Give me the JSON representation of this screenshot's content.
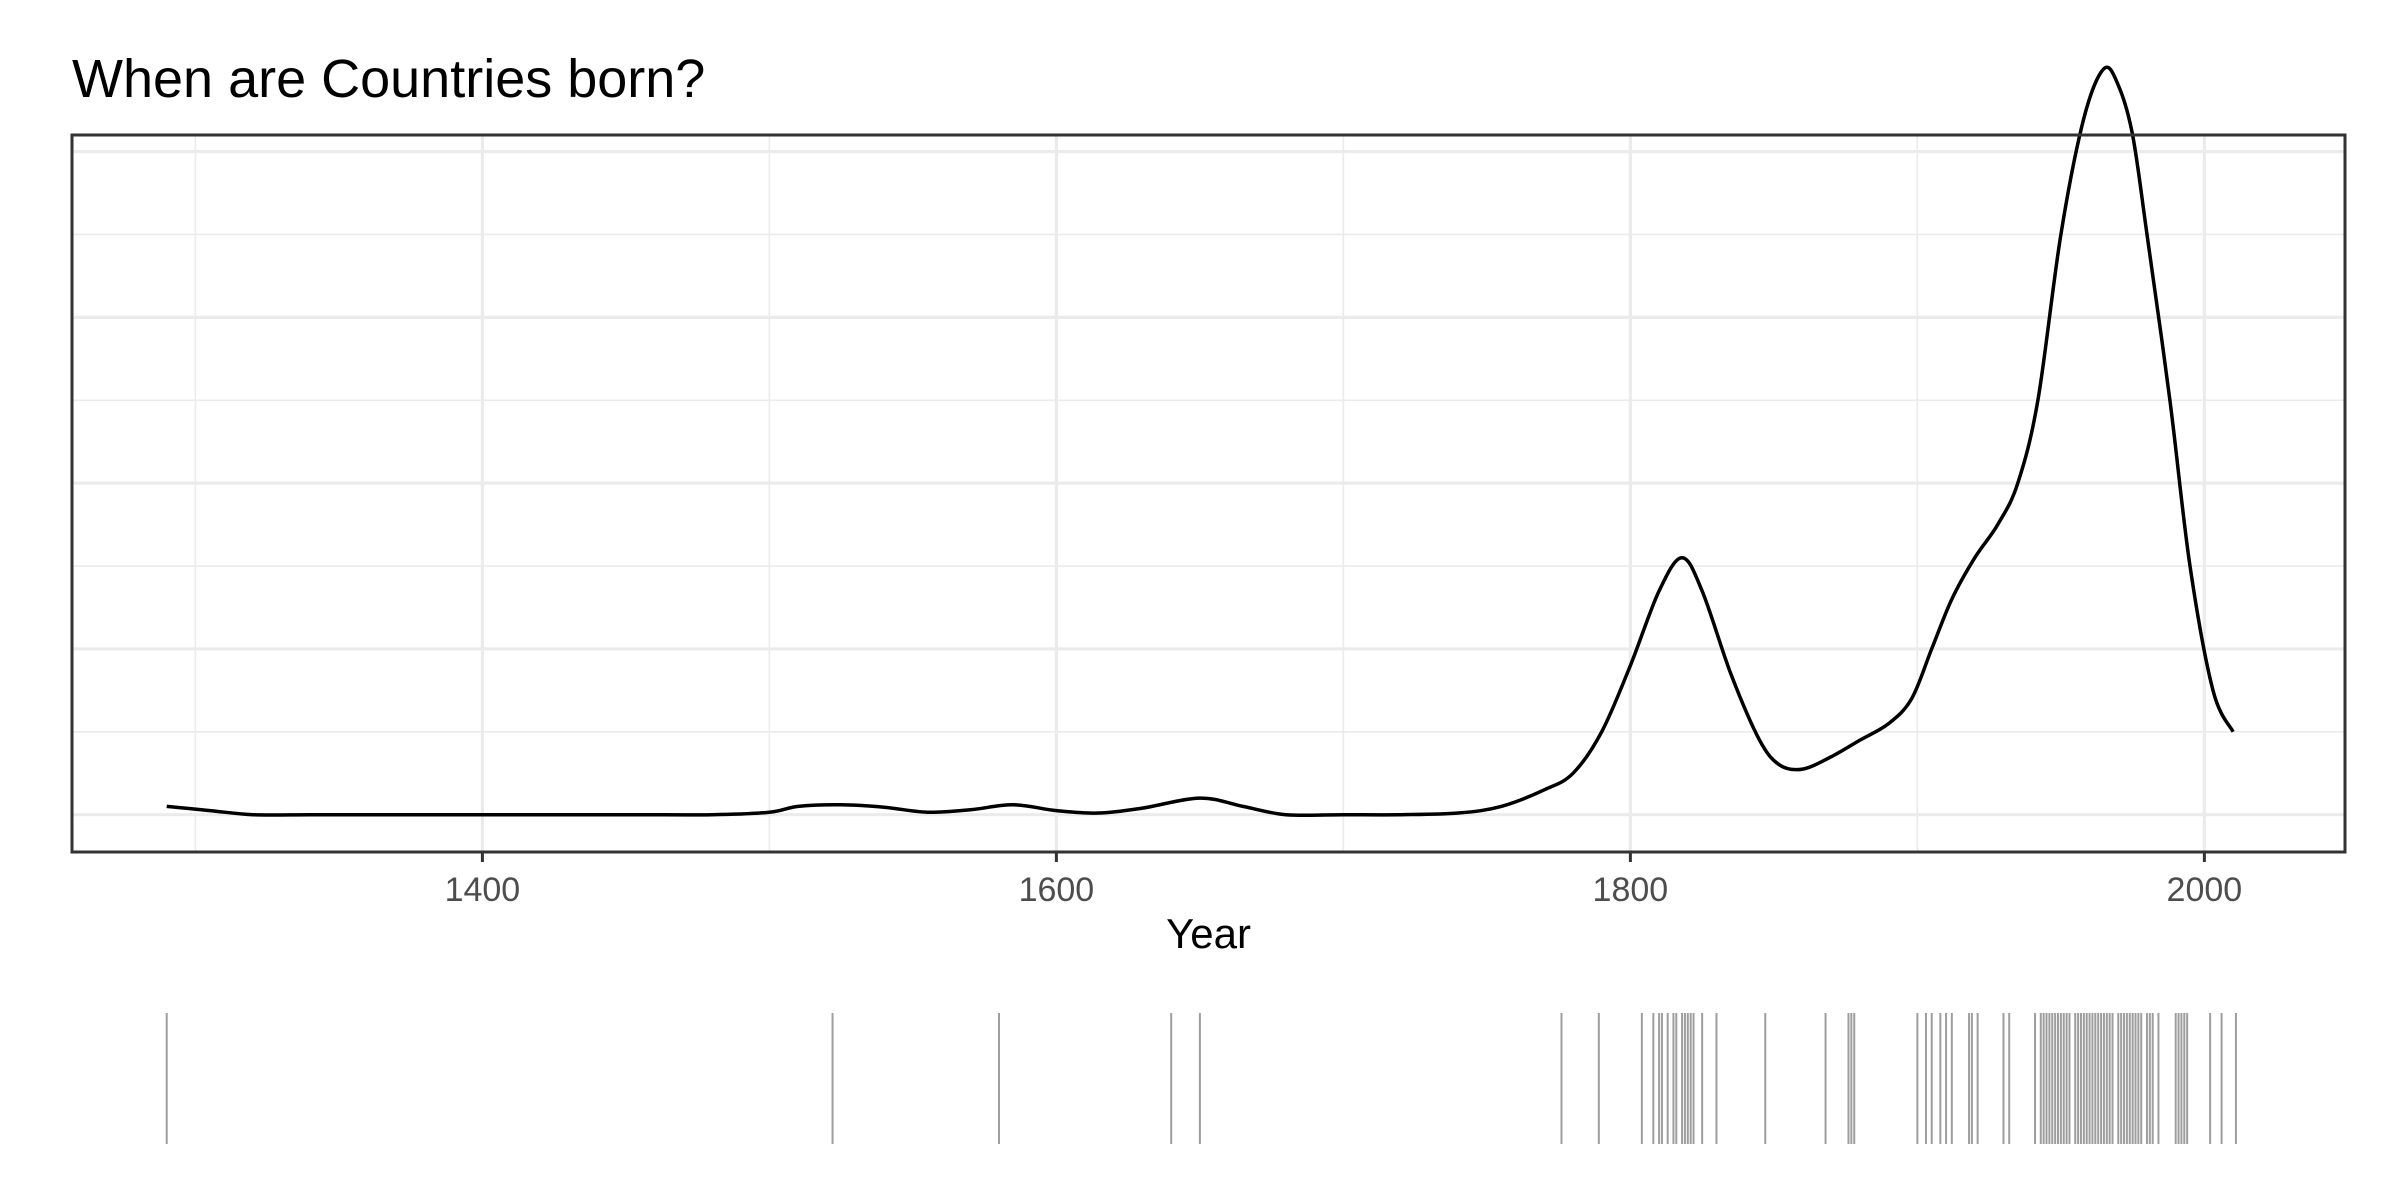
{
  "chart_data": {
    "type": "line",
    "title": "When are Countries born?",
    "xlabel": "Year",
    "ylabel": "",
    "xlim": [
      1257,
      2049
    ],
    "ylim": [
      -0.00045,
      0.0082
    ],
    "x_ticks": [
      "1400",
      "1600",
      "1800",
      "2000"
    ],
    "x_tick_values": [
      1400,
      1600,
      1800,
      2000
    ],
    "grid": true,
    "series": [
      {
        "values_x": [
          1290,
          1305,
          1320,
          1340,
          1360,
          1400,
          1450,
          1480,
          1500,
          1510,
          1525,
          1540,
          1555,
          1570,
          1585,
          1600,
          1615,
          1630,
          1650,
          1665,
          1680,
          1700,
          1720,
          1740,
          1755,
          1770,
          1780,
          1790,
          1800,
          1810,
          1818,
          1825,
          1835,
          1845,
          1852,
          1860,
          1870,
          1880,
          1890,
          1898,
          1905,
          1912,
          1920,
          1928,
          1935,
          1942,
          1950,
          1958,
          1965,
          1970,
          1975,
          1980,
          1988,
          1995,
          2003,
          2010
        ],
        "values_y": [
          0.0001,
          5e-05,
          0.0,
          0.0,
          0.0,
          0.0,
          0.0,
          0.0,
          3e-05,
          0.0001,
          0.00012,
          9e-05,
          3e-05,
          6e-05,
          0.00012,
          5e-05,
          2e-05,
          8e-05,
          0.0002,
          0.0001,
          0.0,
          0.0,
          0.0,
          2e-05,
          0.0001,
          0.0003,
          0.0005,
          0.001,
          0.0018,
          0.0027,
          0.0031,
          0.0027,
          0.0017,
          0.0009,
          0.0006,
          0.00055,
          0.0007,
          0.0009,
          0.0011,
          0.0014,
          0.002,
          0.0026,
          0.0031,
          0.0035,
          0.004,
          0.005,
          0.007,
          0.0084,
          0.009,
          0.0088,
          0.0082,
          0.007,
          0.005,
          0.003,
          0.0015,
          0.001
        ]
      }
    ],
    "rug_years": [
      1290,
      1522,
      1580,
      1640,
      1650,
      1776,
      1789,
      1804,
      1808,
      1810,
      1811,
      1813,
      1815,
      1816,
      1818,
      1819,
      1820,
      1821,
      1822,
      1825,
      1830,
      1847,
      1868,
      1876,
      1877,
      1878,
      1900,
      1903,
      1905,
      1908,
      1910,
      1912,
      1918,
      1919,
      1921,
      1930,
      1932,
      1941,
      1943,
      1944,
      1945,
      1946,
      1947,
      1948,
      1949,
      1950,
      1951,
      1952,
      1953,
      1955,
      1956,
      1957,
      1958,
      1959,
      1960,
      1961,
      1962,
      1963,
      1964,
      1965,
      1966,
      1967,
      1968,
      1970,
      1971,
      1972,
      1973,
      1974,
      1975,
      1976,
      1977,
      1978,
      1980,
      1981,
      1982,
      1984,
      1990,
      1991,
      1992,
      1993,
      1994,
      2002,
      2006,
      2011
    ]
  }
}
